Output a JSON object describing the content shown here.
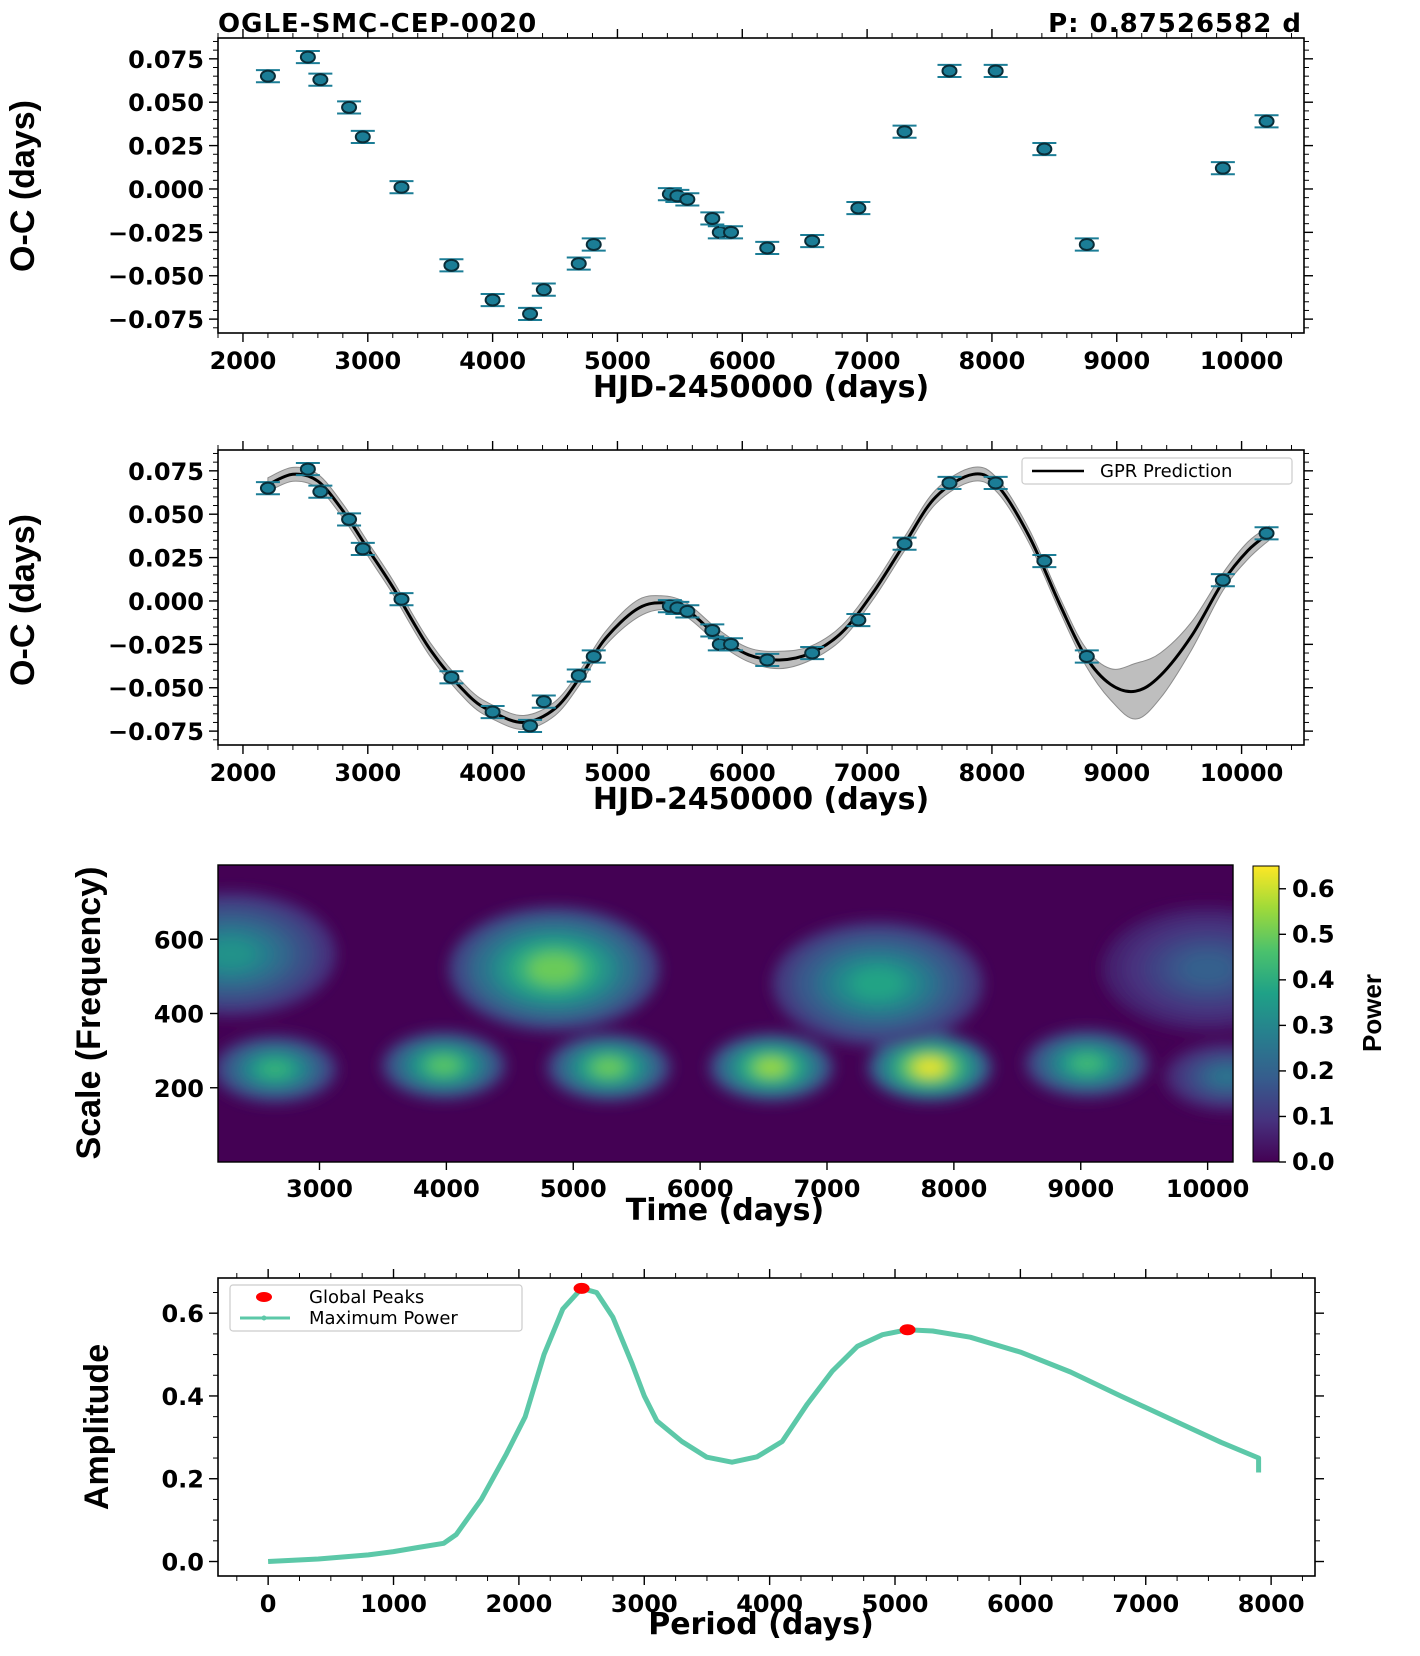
{
  "header": {
    "star_name": "OGLE-SMC-CEP-0020",
    "period_label": "P: 0.87526582 d"
  },
  "colors": {
    "marker_face": "#1b7d96",
    "marker_edge": "#0a2d38",
    "errorbar": "#1b7d96",
    "gpr_line": "#000000",
    "gpr_band": "#a8a8a8",
    "peak_color": "#ff0000",
    "power_line": "#5cc8a8"
  },
  "chart_data": [
    {
      "id": "oc-diagram",
      "type": "scatter",
      "xlabel": "HJD-2450000 (days)",
      "ylabel": "O-C (days)",
      "xlim": [
        1800,
        10500
      ],
      "ylim": [
        -0.083,
        0.087
      ],
      "xticks": [
        2000,
        3000,
        4000,
        5000,
        6000,
        7000,
        8000,
        9000,
        10000
      ],
      "yticks": [
        0.075,
        0.05,
        0.025,
        0.0,
        -0.025,
        -0.05,
        -0.075
      ],
      "ytick_labels": [
        "0.075",
        "0.050",
        "0.025",
        "0.000",
        "−0.025",
        "−0.050",
        "−0.075"
      ],
      "error": 0.0035,
      "points": [
        [
          2200,
          0.065
        ],
        [
          2520,
          0.076
        ],
        [
          2620,
          0.063
        ],
        [
          2850,
          0.047
        ],
        [
          2960,
          0.03
        ],
        [
          3270,
          0.001
        ],
        [
          3670,
          -0.044
        ],
        [
          4000,
          -0.064
        ],
        [
          4300,
          -0.072
        ],
        [
          4410,
          -0.058
        ],
        [
          4690,
          -0.043
        ],
        [
          4810,
          -0.032
        ],
        [
          5420,
          -0.003
        ],
        [
          5480,
          -0.004
        ],
        [
          5560,
          -0.006
        ],
        [
          5760,
          -0.017
        ],
        [
          5820,
          -0.025
        ],
        [
          5910,
          -0.025
        ],
        [
          6200,
          -0.034
        ],
        [
          6560,
          -0.03
        ],
        [
          6930,
          -0.011
        ],
        [
          7300,
          0.033
        ],
        [
          7660,
          0.068
        ],
        [
          8030,
          0.068
        ],
        [
          8420,
          0.023
        ],
        [
          8760,
          -0.032
        ],
        [
          9850,
          0.012
        ],
        [
          10200,
          0.039
        ]
      ]
    },
    {
      "id": "gpr-fit",
      "type": "line",
      "xlabel": "HJD-2450000 (days)",
      "ylabel": "O-C (days)",
      "xlim": [
        1800,
        10500
      ],
      "ylim": [
        -0.083,
        0.087
      ],
      "xticks": [
        2000,
        3000,
        4000,
        5000,
        6000,
        7000,
        8000,
        9000,
        10000
      ],
      "yticks": [
        0.075,
        0.05,
        0.025,
        0.0,
        -0.025,
        -0.05,
        -0.075
      ],
      "ytick_labels": [
        "0.075",
        "0.050",
        "0.025",
        "0.000",
        "−0.025",
        "−0.050",
        "−0.075"
      ],
      "legend": {
        "label": "GPR Prediction",
        "position": "upper right"
      },
      "prediction": [
        [
          2200,
          0.067,
          0.004
        ],
        [
          2400,
          0.073,
          0.004
        ],
        [
          2600,
          0.069,
          0.004
        ],
        [
          2800,
          0.052,
          0.004
        ],
        [
          3000,
          0.03,
          0.004
        ],
        [
          3200,
          0.008,
          0.004
        ],
        [
          3500,
          -0.028,
          0.004
        ],
        [
          3800,
          -0.054,
          0.004
        ],
        [
          4000,
          -0.064,
          0.004
        ],
        [
          4250,
          -0.07,
          0.004
        ],
        [
          4500,
          -0.062,
          0.004
        ],
        [
          4700,
          -0.044,
          0.004
        ],
        [
          4900,
          -0.022,
          0.004
        ],
        [
          5150,
          -0.005,
          0.005
        ],
        [
          5350,
          -0.001,
          0.004
        ],
        [
          5550,
          -0.005,
          0.004
        ],
        [
          5800,
          -0.02,
          0.004
        ],
        [
          6050,
          -0.031,
          0.004
        ],
        [
          6300,
          -0.034,
          0.005
        ],
        [
          6550,
          -0.03,
          0.004
        ],
        [
          6800,
          -0.018,
          0.004
        ],
        [
          7050,
          0.005,
          0.004
        ],
        [
          7300,
          0.033,
          0.004
        ],
        [
          7550,
          0.06,
          0.004
        ],
        [
          7850,
          0.073,
          0.004
        ],
        [
          8050,
          0.066,
          0.004
        ],
        [
          8300,
          0.037,
          0.004
        ],
        [
          8550,
          -0.003,
          0.004
        ],
        [
          8750,
          -0.032,
          0.005
        ],
        [
          8950,
          -0.048,
          0.009
        ],
        [
          9150,
          -0.052,
          0.016
        ],
        [
          9350,
          -0.043,
          0.013
        ],
        [
          9600,
          -0.02,
          0.008
        ],
        [
          9850,
          0.011,
          0.005
        ],
        [
          10050,
          0.029,
          0.005
        ],
        [
          10220,
          0.039,
          0.004
        ]
      ]
    },
    {
      "id": "wavelet-scalogram",
      "type": "heatmap",
      "xlabel": "Time (days)",
      "ylabel": "Scale (Frequency)",
      "xlim": [
        2200,
        10200
      ],
      "ylim": [
        0,
        800
      ],
      "xticks": [
        3000,
        4000,
        5000,
        6000,
        7000,
        8000,
        9000,
        10000
      ],
      "yticks": [
        200,
        400,
        600
      ],
      "colorbar": {
        "label": "Power",
        "range": [
          0,
          0.65
        ],
        "ticks": [
          0.0,
          0.1,
          0.2,
          0.3,
          0.4,
          0.5,
          0.6
        ],
        "tick_labels": [
          "0.0",
          "0.1",
          "0.2",
          "0.3",
          "0.4",
          "0.5",
          "0.6"
        ],
        "colormap": "viridis"
      },
      "blobs": [
        {
          "t": 2650,
          "s": 250,
          "power": 0.42
        },
        {
          "t": 3980,
          "s": 260,
          "power": 0.48
        },
        {
          "t": 5280,
          "s": 255,
          "power": 0.5
        },
        {
          "t": 6560,
          "s": 255,
          "power": 0.55
        },
        {
          "t": 7810,
          "s": 255,
          "power": 0.63
        },
        {
          "t": 9050,
          "s": 265,
          "power": 0.44
        },
        {
          "t": 10150,
          "s": 230,
          "power": 0.25
        },
        {
          "t": 4850,
          "s": 520,
          "power": 0.5
        },
        {
          "t": 7400,
          "s": 480,
          "power": 0.38
        },
        {
          "t": 2300,
          "s": 560,
          "power": 0.33
        },
        {
          "t": 10000,
          "s": 520,
          "power": 0.2
        }
      ]
    },
    {
      "id": "global-wavelet-spectrum",
      "type": "line",
      "xlabel": "Period (days)",
      "ylabel": "Amplitude",
      "xlim": [
        -400,
        8350
      ],
      "ylim": [
        -0.035,
        0.685
      ],
      "xticks": [
        0,
        1000,
        2000,
        3000,
        4000,
        5000,
        6000,
        7000,
        8000
      ],
      "yticks": [
        0.0,
        0.2,
        0.4,
        0.6
      ],
      "ytick_labels": [
        "0.0",
        "0.2",
        "0.4",
        "0.6"
      ],
      "series": [
        {
          "name": "Maximum Power",
          "points": [
            [
              0,
              0.0
            ],
            [
              400,
              0.006
            ],
            [
              800,
              0.016
            ],
            [
              1000,
              0.024
            ],
            [
              1200,
              0.034
            ],
            [
              1400,
              0.044
            ],
            [
              1500,
              0.065
            ],
            [
              1700,
              0.15
            ],
            [
              1900,
              0.26
            ],
            [
              2050,
              0.35
            ],
            [
              2200,
              0.5
            ],
            [
              2350,
              0.61
            ],
            [
              2500,
              0.66
            ],
            [
              2620,
              0.65
            ],
            [
              2750,
              0.59
            ],
            [
              2900,
              0.48
            ],
            [
              3000,
              0.4
            ],
            [
              3100,
              0.34
            ],
            [
              3300,
              0.29
            ],
            [
              3500,
              0.252
            ],
            [
              3700,
              0.24
            ],
            [
              3900,
              0.253
            ],
            [
              4100,
              0.29
            ],
            [
              4300,
              0.38
            ],
            [
              4500,
              0.46
            ],
            [
              4700,
              0.52
            ],
            [
              4900,
              0.548
            ],
            [
              5100,
              0.56
            ],
            [
              5300,
              0.557
            ],
            [
              5600,
              0.542
            ],
            [
              6000,
              0.506
            ],
            [
              6400,
              0.458
            ],
            [
              6800,
              0.4
            ],
            [
              7200,
              0.344
            ],
            [
              7600,
              0.288
            ],
            [
              7900,
              0.25
            ],
            [
              7900,
              0.215
            ]
          ]
        },
        {
          "name": "Global Peaks",
          "points": [
            [
              2500,
              0.66
            ],
            [
              5100,
              0.56
            ]
          ]
        }
      ]
    }
  ]
}
